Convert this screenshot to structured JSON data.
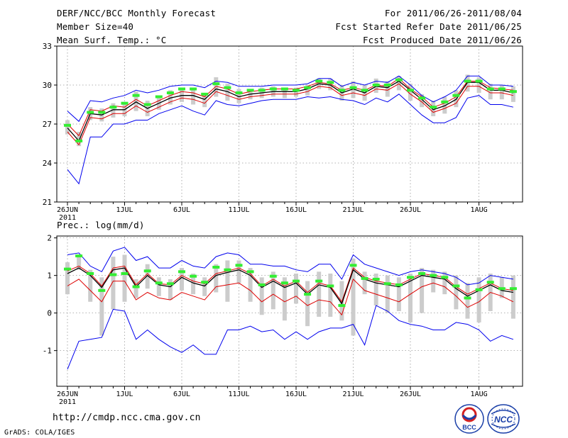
{
  "header": {
    "title": "DERF/NCC/BCC Monthly Forecast",
    "member_size": "Member Size=40",
    "var1_label": "Mean Surf. Temp.: °C",
    "period": "For 2011/06/26-2011/08/04",
    "started": "Fcst Started Refer Date 2011/06/25",
    "produced": "Fcst Produced Date 2011/06/26"
  },
  "footer": {
    "url": "http://cmdp.ncc.cma.gov.cn",
    "grads": "GrADS: COLA/IGES",
    "logo_bcc": "BCC",
    "logo_ncc": "NCC"
  },
  "colors": {
    "ensemble_mean": "#000000",
    "spread_upper": "#dd0000",
    "extreme": "#0000ee",
    "range_bar": "#cccccc",
    "median": "#33ee33"
  },
  "chart_data": [
    {
      "type": "line",
      "title": "Mean Surf. Temp.: °C",
      "ylim": [
        21,
        33
      ],
      "yticks": [
        "21",
        "24",
        "27",
        "30",
        "33"
      ],
      "x_tick_labels": [
        "26JUN",
        "1JUL",
        "6JUL",
        "11JUL",
        "16JUL",
        "21JUL",
        "26JUL",
        "1AUG"
      ],
      "x_tick_index": [
        0,
        5,
        10,
        15,
        20,
        25,
        30,
        36
      ],
      "year_label": "2011",
      "n_days": 40,
      "grid": true,
      "series": [
        {
          "name": "max",
          "values": [
            28,
            27.2,
            28.8,
            28.7,
            29,
            29.2,
            29.6,
            29.4,
            29.6,
            29.9,
            30,
            30,
            29.8,
            30.3,
            30.2,
            29.9,
            29.9,
            29.9,
            30,
            30,
            30,
            30.1,
            30.5,
            30.5,
            29.9,
            30.2,
            30,
            30.3,
            30.2,
            30.7,
            30,
            29.2,
            28.7,
            29.1,
            29.6,
            30.7,
            30.7,
            30,
            30,
            29.9
          ]
        },
        {
          "name": "mean_plus",
          "values": [
            27,
            26.1,
            28.1,
            28,
            28.4,
            28.3,
            28.9,
            28.4,
            28.8,
            29.2,
            29.5,
            29.4,
            29.1,
            29.9,
            29.7,
            29.3,
            29.5,
            29.6,
            29.7,
            29.7,
            29.7,
            29.9,
            30.2,
            30.1,
            29.6,
            29.8,
            29.6,
            30,
            29.9,
            30.5,
            29.7,
            29.1,
            28.3,
            28.6,
            29.1,
            30.3,
            30.3,
            29.8,
            29.7,
            29.6
          ]
        },
        {
          "name": "mean",
          "values": [
            26.7,
            25.7,
            27.8,
            27.7,
            28.1,
            28.1,
            28.7,
            28.2,
            28.6,
            29,
            29.2,
            29.2,
            28.9,
            29.7,
            29.5,
            29.1,
            29.3,
            29.4,
            29.5,
            29.5,
            29.5,
            29.7,
            30.1,
            30,
            29.4,
            29.7,
            29.4,
            29.9,
            29.8,
            30.3,
            29.6,
            28.9,
            28.1,
            28.4,
            28.9,
            30.2,
            30.2,
            29.6,
            29.6,
            29.4
          ]
        },
        {
          "name": "spread_upper",
          "values": [
            26.4,
            25.4,
            27.5,
            27.4,
            27.8,
            27.8,
            28.4,
            27.9,
            28.3,
            28.7,
            29,
            28.9,
            28.6,
            29.5,
            29.2,
            28.9,
            29.1,
            29.2,
            29.3,
            29.3,
            29.3,
            29.5,
            29.9,
            29.8,
            29.2,
            29.4,
            29.2,
            29.7,
            29.6,
            30.1,
            29.3,
            28.7,
            27.9,
            28.2,
            28.6,
            29.9,
            29.9,
            29.4,
            29.4,
            29.2
          ]
        },
        {
          "name": "min",
          "values": [
            23.5,
            22.4,
            26,
            26,
            27,
            27,
            27.3,
            27.3,
            27.8,
            28.1,
            28.4,
            28,
            27.7,
            28.8,
            28.5,
            28.4,
            28.6,
            28.8,
            28.9,
            28.9,
            28.9,
            29.1,
            29,
            29.1,
            28.9,
            28.8,
            28.5,
            29,
            28.7,
            29.3,
            28.5,
            27.7,
            27.1,
            27.1,
            27.5,
            29,
            29.2,
            28.5,
            28.5,
            28.3
          ]
        },
        {
          "name": "bar_low",
          "values": [
            26.2,
            25.3,
            27.3,
            27.2,
            27.5,
            27.6,
            28,
            27.6,
            28.1,
            28.5,
            28.7,
            28.5,
            28.3,
            29.1,
            28.8,
            28.6,
            28.9,
            29,
            29.1,
            29,
            29.1,
            29.2,
            29.7,
            29.6,
            28.8,
            29,
            28.8,
            29.4,
            29.1,
            29.6,
            28.8,
            28.3,
            27.6,
            27.8,
            28.3,
            29.5,
            29.4,
            28.9,
            28.9,
            28.7
          ]
        },
        {
          "name": "bar_high",
          "values": [
            27.3,
            26.4,
            28.3,
            28.2,
            28.6,
            28.7,
            29.5,
            28.8,
            29.2,
            29.6,
            29.8,
            29.7,
            29.4,
            30.6,
            30.1,
            29.7,
            29.7,
            29.8,
            29.9,
            29.8,
            29.8,
            30,
            30.5,
            30.5,
            30,
            30.3,
            30,
            30.5,
            30.3,
            30.7,
            30.1,
            29.3,
            28.8,
            29.1,
            29.6,
            30.8,
            30.6,
            30.1,
            30,
            29.9
          ]
        },
        {
          "name": "median",
          "values": [
            26.9,
            25.7,
            27.9,
            27.9,
            28.3,
            28.6,
            29.2,
            28.5,
            29.1,
            29.4,
            29.7,
            29.7,
            29.3,
            30.1,
            29.8,
            29.4,
            29.6,
            29.6,
            29.7,
            29.7,
            29.6,
            29.8,
            30.3,
            30.2,
            29.6,
            29.8,
            29.6,
            30,
            30,
            30.4,
            29.6,
            29,
            28.3,
            28.7,
            29.2,
            30.3,
            30.3,
            29.7,
            29.7,
            29.5
          ]
        }
      ]
    },
    {
      "type": "line",
      "title": "Prec.: log(mm/d)",
      "ylim": [
        -1.95,
        2.05
      ],
      "yticks": [
        "-1",
        "0",
        "1",
        "2"
      ],
      "x_tick_labels": [
        "26JUN",
        "1JUL",
        "6JUL",
        "11JUL",
        "16JUL",
        "21JUL",
        "26JUL",
        "1AUG"
      ],
      "x_tick_index": [
        0,
        5,
        10,
        15,
        20,
        25,
        30,
        36
      ],
      "year_label": "2011",
      "n_days": 40,
      "grid": true,
      "series": [
        {
          "name": "max",
          "values": [
            1.55,
            1.6,
            1.25,
            1.1,
            1.65,
            1.75,
            1.4,
            1.5,
            1.2,
            1.2,
            1.4,
            1.25,
            1.2,
            1.5,
            1.6,
            1.55,
            1.3,
            1.3,
            1.25,
            1.25,
            1.15,
            1.1,
            1.3,
            1.3,
            0.9,
            1.55,
            1.3,
            1.2,
            1.1,
            1,
            1.1,
            1.15,
            1.1,
            1.05,
            0.95,
            0.75,
            0.8,
            1,
            0.95,
            0.9
          ]
        },
        {
          "name": "mean_plus",
          "values": [
            1.12,
            1.25,
            1.05,
            0.72,
            1.2,
            1.25,
            0.75,
            1.05,
            0.78,
            0.75,
            1,
            0.85,
            0.78,
            1.05,
            1.12,
            1.2,
            1.05,
            0.72,
            0.9,
            0.72,
            0.85,
            0.55,
            0.8,
            0.72,
            0.3,
            1.2,
            0.95,
            0.85,
            0.8,
            0.75,
            0.9,
            1.05,
            1,
            0.95,
            0.7,
            0.5,
            0.65,
            0.8,
            0.65,
            0.6
          ]
        },
        {
          "name": "mean",
          "values": [
            1.05,
            1.2,
            1,
            0.68,
            1.15,
            1.2,
            0.7,
            1,
            0.75,
            0.7,
            0.95,
            0.8,
            0.72,
            1,
            1.08,
            1.15,
            1,
            0.68,
            0.85,
            0.68,
            0.8,
            0.5,
            0.75,
            0.68,
            0.25,
            1.15,
            0.9,
            0.8,
            0.75,
            0.7,
            0.85,
            1,
            0.95,
            0.9,
            0.65,
            0.45,
            0.6,
            0.75,
            0.6,
            0.55
          ]
        },
        {
          "name": "spread_upper",
          "values": [
            0.72,
            0.9,
            0.6,
            0.3,
            0.85,
            0.85,
            0.35,
            0.55,
            0.4,
            0.35,
            0.55,
            0.45,
            0.35,
            0.7,
            0.75,
            0.8,
            0.6,
            0.3,
            0.5,
            0.3,
            0.45,
            0.2,
            0.35,
            0.3,
            -0.05,
            0.9,
            0.6,
            0.5,
            0.4,
            0.3,
            0.5,
            0.7,
            0.8,
            0.7,
            0.45,
            0.15,
            0.3,
            0.55,
            0.45,
            0.3
          ]
        },
        {
          "name": "min",
          "values": [
            -1.5,
            -0.75,
            -0.7,
            -0.65,
            0.1,
            0.05,
            -0.7,
            -0.45,
            -0.7,
            -0.9,
            -1.05,
            -0.85,
            -1.1,
            -1.1,
            -0.45,
            -0.45,
            -0.35,
            -0.5,
            -0.45,
            -0.7,
            -0.5,
            -0.7,
            -0.5,
            -0.4,
            -0.4,
            -0.3,
            -0.85,
            0.2,
            0.05,
            -0.2,
            -0.3,
            -0.35,
            -0.45,
            -0.45,
            -0.25,
            -0.3,
            -0.45,
            -0.75,
            -0.6,
            -0.7
          ]
        },
        {
          "name": "bar_low",
          "values": [
            0.5,
            1.15,
            0.3,
            -0.6,
            0.1,
            0.3,
            0.4,
            0.65,
            0.45,
            0.35,
            0.6,
            0.5,
            0.45,
            0.55,
            0.3,
            0.8,
            0.3,
            -0.05,
            0.1,
            -0.2,
            0.25,
            -0.35,
            -0.1,
            -0.1,
            -0.2,
            -0.6,
            0.5,
            0.2,
            0,
            0.05,
            -0.25,
            0,
            0.55,
            0.5,
            0.1,
            -0.15,
            -0.25,
            0.05,
            0.4,
            -0.15
          ]
        },
        {
          "name": "bar_high",
          "values": [
            1.35,
            1.55,
            1.15,
            0.95,
            1.5,
            1.55,
            0.9,
            1.3,
            0.95,
            0.9,
            1.2,
            1.05,
            0.95,
            1.3,
            1.4,
            1.4,
            1.2,
            0.95,
            1.1,
            0.95,
            1.05,
            0.85,
            1.1,
            1.05,
            0.85,
            1.45,
            1.1,
            1.05,
            1,
            0.95,
            1.05,
            1.2,
            1.15,
            1.1,
            1,
            0.8,
            0.95,
            1.05,
            0.95,
            1
          ]
        },
        {
          "name": "median",
          "values": [
            1.17,
            1.52,
            1.05,
            0.6,
            1.02,
            1.05,
            0.7,
            1.12,
            0.8,
            0.78,
            1.1,
            0.98,
            0.82,
            1.22,
            1.15,
            1.27,
            1.1,
            0.75,
            0.98,
            0.8,
            0.85,
            0.5,
            0.85,
            0.72,
            0.2,
            1.27,
            0.92,
            0.9,
            0.78,
            0.75,
            0.95,
            1.05,
            1,
            0.95,
            0.72,
            0.4,
            0.62,
            0.82,
            0.65,
            0.65
          ]
        }
      ]
    },
    {
      "type": "line",
      "title": "Prec.: log(mm/d)"
    }
  ]
}
